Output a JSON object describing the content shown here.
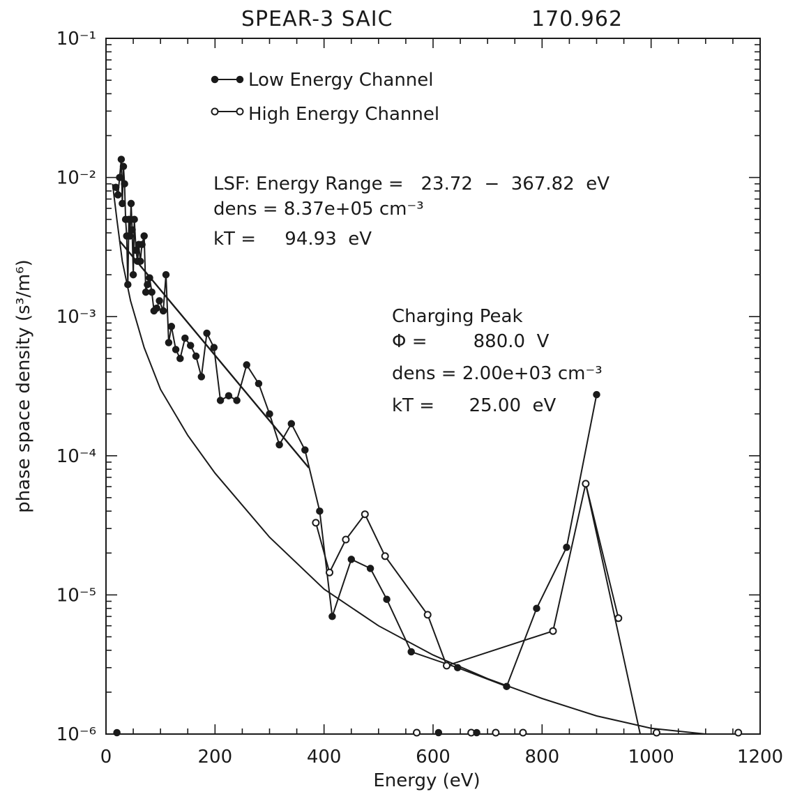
{
  "chart_data": {
    "type": "scatter",
    "title": "SPEAR-3  SAIC",
    "title_right": "170.962",
    "xlabel": "Energy (eV)",
    "ylabel": "phase space density (s³/m⁶)",
    "xlim": [
      0,
      1200
    ],
    "ylim": [
      1e-06,
      0.1
    ],
    "yscale": "log",
    "grid": false,
    "x_ticks": [
      "0",
      "200",
      "400",
      "600",
      "800",
      "1000",
      "1200"
    ],
    "y_ticks": [
      "10⁻⁶",
      "10⁻⁵",
      "10⁻⁴",
      "10⁻³",
      "10⁻²",
      "10⁻¹"
    ],
    "legend": {
      "position": "top-left",
      "entries": [
        "Low Energy Channel",
        "High Energy Channel"
      ]
    },
    "annotations": {
      "lsf_range": "LSF: Energy Range =   23.72  −  367.82  eV",
      "lsf_dens": "dens = 8.37e+05 cm⁻³",
      "lsf_kt": "kT =     94.93  eV",
      "peak_title": "Charging Peak",
      "peak_phi": "Φ =        880.0  V",
      "peak_dens": "dens = 2.00e+03 cm⁻³",
      "peak_kt": "kT =      25.00  eV"
    },
    "series": [
      {
        "name": "Low Energy Channel",
        "marker": "filled",
        "points": [
          [
            18,
            0.0085
          ],
          [
            22,
            0.0075
          ],
          [
            25,
            0.01
          ],
          [
            28,
            0.0135
          ],
          [
            30,
            0.0065
          ],
          [
            32,
            0.012
          ],
          [
            34,
            0.009
          ],
          [
            36,
            0.005
          ],
          [
            38,
            0.0038
          ],
          [
            40,
            0.0017
          ],
          [
            42,
            0.005
          ],
          [
            44,
            0.0038
          ],
          [
            46,
            0.0065
          ],
          [
            48,
            0.0042
          ],
          [
            50,
            0.002
          ],
          [
            52,
            0.005
          ],
          [
            55,
            0.003
          ],
          [
            58,
            0.0025
          ],
          [
            60,
            0.0033
          ],
          [
            63,
            0.0025
          ],
          [
            66,
            0.0033
          ],
          [
            70,
            0.0038
          ],
          [
            73,
            0.0015
          ],
          [
            76,
            0.0017
          ],
          [
            80,
            0.0019
          ],
          [
            84,
            0.0015
          ],
          [
            88,
            0.0011
          ],
          [
            93,
            0.00115
          ],
          [
            98,
            0.0013
          ],
          [
            105,
            0.0011
          ],
          [
            110,
            0.002
          ],
          [
            115,
            0.00065
          ],
          [
            120,
            0.00085
          ],
          [
            128,
            0.00058
          ],
          [
            136,
            0.0005
          ],
          [
            145,
            0.0007
          ],
          [
            155,
            0.00062
          ],
          [
            165,
            0.00052
          ],
          [
            175,
            0.00037
          ],
          [
            185,
            0.00076
          ],
          [
            198,
            0.0006
          ],
          [
            210,
            0.00025
          ],
          [
            225,
            0.00027
          ],
          [
            240,
            0.00025
          ],
          [
            258,
            0.00045
          ],
          [
            280,
            0.00033
          ],
          [
            300,
            0.0002
          ],
          [
            318,
            0.00012
          ],
          [
            340,
            0.00017
          ],
          [
            365,
            0.00011
          ],
          [
            392,
            4e-05
          ],
          [
            415,
            7e-06
          ],
          [
            450,
            1.8e-05
          ],
          [
            485,
            1.55e-05
          ],
          [
            515,
            9.3e-06
          ],
          [
            560,
            3.9e-06
          ],
          [
            645,
            3e-06
          ],
          [
            735,
            2.2e-06
          ],
          [
            790,
            8e-06
          ],
          [
            845,
            2.2e-05
          ],
          [
            900,
            0.000275
          ]
        ]
      },
      {
        "name": "High Energy Channel",
        "marker": "open",
        "points": [
          [
            385,
            3.3e-05
          ],
          [
            410,
            1.45e-05
          ],
          [
            440,
            2.5e-05
          ],
          [
            475,
            3.8e-05
          ],
          [
            512,
            1.9e-05
          ],
          [
            590,
            7.2e-06
          ],
          [
            625,
            3.1e-06
          ],
          [
            820,
            5.5e-06
          ],
          [
            880,
            6.3e-05
          ],
          [
            940,
            6.8e-06
          ]
        ]
      }
    ],
    "lsf_fit": {
      "x_range": [
        23.72,
        367.82
      ],
      "dens": "8.37e+05",
      "kT": 94.93
    }
  }
}
